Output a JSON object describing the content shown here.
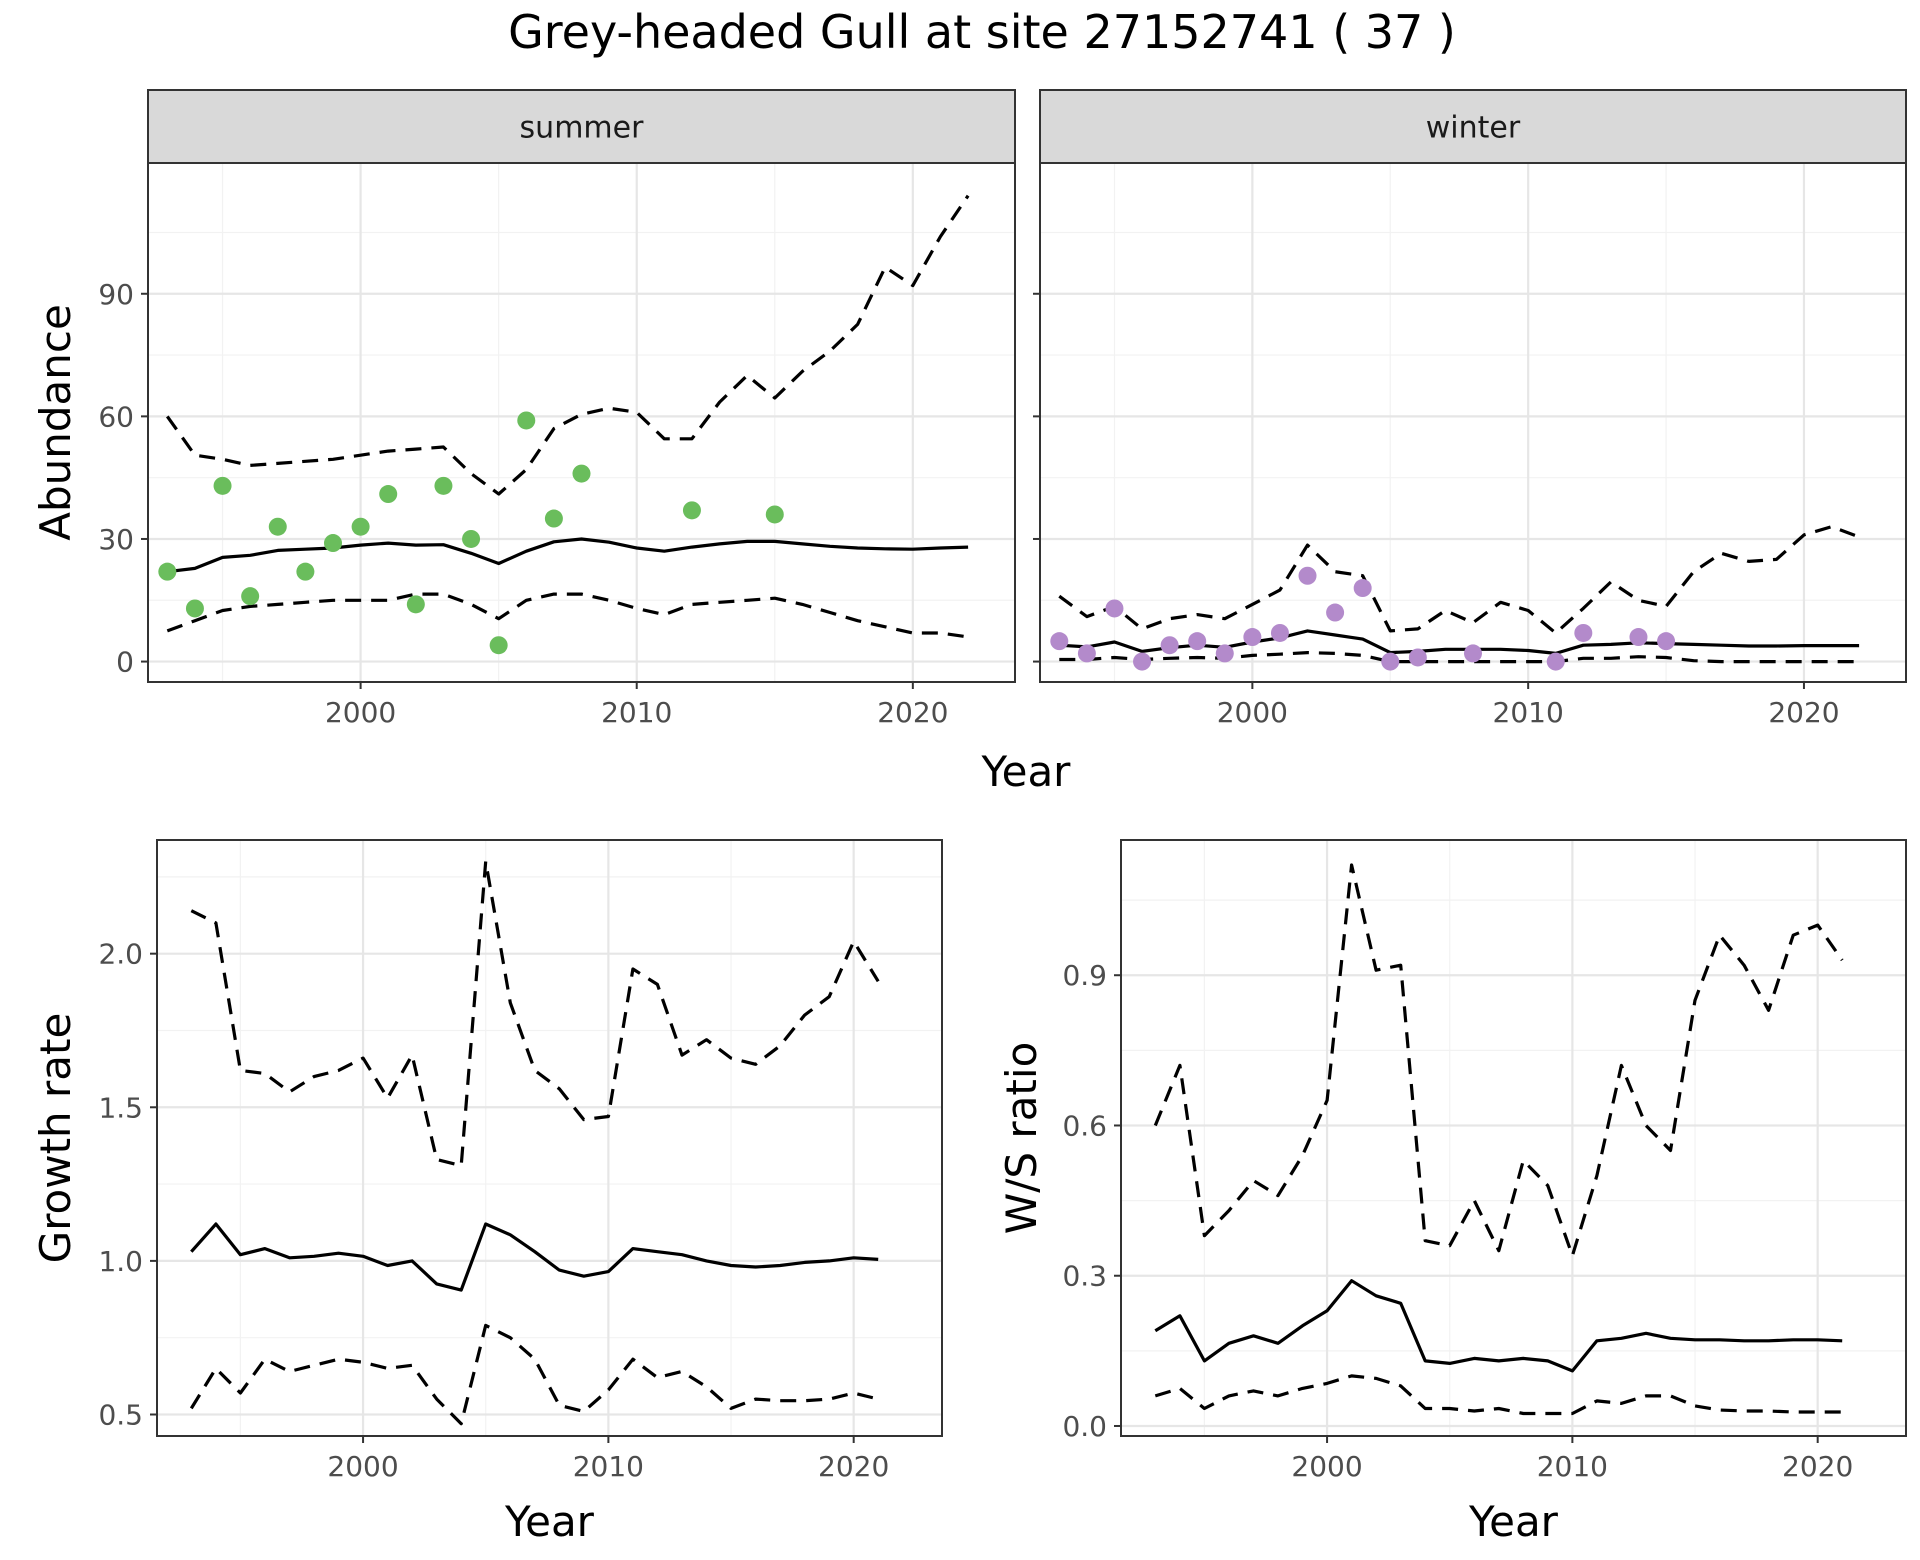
{
  "chart_data": {
    "type": "line",
    "title": "Grey-headed Gull at site 27152741 ( 37 )",
    "panels": [
      {
        "id": "summer",
        "strip": "summer",
        "xlabel": "",
        "ylabel": "Abundance",
        "xlim": [
          1992.3,
          2023.7
        ],
        "ylim": [
          -5,
          122
        ],
        "xticks": [
          2000,
          2010,
          2020
        ],
        "xtick_labels": [
          "2000",
          "2010",
          "2020"
        ],
        "yticks": [
          0,
          30,
          60,
          90
        ],
        "ytick_labels": [
          "0",
          "30",
          "60",
          "90"
        ],
        "show_y_labels": true,
        "point_color": "#6abd5c",
        "points": {
          "x": [
            1993,
            1994,
            1995,
            1996,
            1997,
            1998,
            1999,
            2000,
            2001,
            2002,
            2003,
            2004,
            2005,
            2006,
            2007,
            2008,
            2012,
            2015
          ],
          "y": [
            22,
            13,
            43,
            16,
            33,
            22,
            29,
            33,
            41,
            14,
            43,
            30,
            4,
            59,
            35,
            46,
            37,
            36
          ]
        },
        "mean": {
          "x": [
            1993,
            1994,
            1995,
            1996,
            1997,
            1998,
            1999,
            2000,
            2001,
            2002,
            2003,
            2004,
            2005,
            2006,
            2007,
            2008,
            2009,
            2010,
            2011,
            2012,
            2013,
            2014,
            2015,
            2016,
            2017,
            2018,
            2019,
            2020,
            2021,
            2022
          ],
          "y": [
            22,
            22.8,
            25.5,
            26,
            27.2,
            27.5,
            27.8,
            28.5,
            29,
            28.5,
            28.6,
            26.5,
            24,
            27,
            29.3,
            30,
            29.2,
            27.8,
            27,
            28,
            28.8,
            29.4,
            29.4,
            28.8,
            28.2,
            27.8,
            27.6,
            27.5,
            27.8,
            28
          ]
        },
        "upper": {
          "x": [
            1993,
            1994,
            1995,
            1996,
            1997,
            1998,
            1999,
            2000,
            2001,
            2002,
            2003,
            2004,
            2005,
            2006,
            2007,
            2008,
            2009,
            2010,
            2011,
            2012,
            2013,
            2014,
            2015,
            2016,
            2017,
            2018,
            2019,
            2020,
            2021,
            2022
          ],
          "y": [
            60,
            50.5,
            49.5,
            48,
            48.5,
            49,
            49.5,
            50.5,
            51.5,
            52,
            52.5,
            46,
            41,
            47,
            57,
            60.5,
            62,
            61,
            54.5,
            54.5,
            63.5,
            70,
            64.5,
            71,
            76,
            82.5,
            96.5,
            92,
            104,
            114
          ]
        },
        "lower": {
          "x": [
            1993,
            1994,
            1995,
            1996,
            1997,
            1998,
            1999,
            2000,
            2001,
            2002,
            2003,
            2004,
            2005,
            2006,
            2007,
            2008,
            2009,
            2010,
            2011,
            2012,
            2013,
            2014,
            2015,
            2016,
            2017,
            2018,
            2019,
            2020,
            2021,
            2022
          ],
          "y": [
            7.5,
            10,
            12.5,
            13.5,
            14,
            14.5,
            15,
            15,
            15,
            16.5,
            16.5,
            14,
            10.5,
            15,
            16.5,
            16.5,
            15,
            13,
            11.5,
            14,
            14.5,
            15,
            15.5,
            14,
            12,
            10,
            8.5,
            7,
            7,
            6
          ]
        }
      },
      {
        "id": "winter",
        "strip": "winter",
        "xlabel": "",
        "ylabel": "",
        "xlim": [
          1992.3,
          2023.7
        ],
        "ylim": [
          -5,
          122
        ],
        "xticks": [
          2000,
          2010,
          2020
        ],
        "xtick_labels": [
          "2000",
          "2010",
          "2020"
        ],
        "yticks": [
          0,
          30,
          60,
          90
        ],
        "ytick_labels": [],
        "show_y_labels": false,
        "point_color": "#b38acb",
        "points": {
          "x": [
            1993,
            1994,
            1995,
            1996,
            1997,
            1998,
            1999,
            2000,
            2001,
            2002,
            2003,
            2004,
            2005,
            2006,
            2008,
            2011,
            2012,
            2014,
            2015
          ],
          "y": [
            5,
            2,
            13,
            0,
            4,
            5,
            2,
            6,
            7,
            21,
            12,
            18,
            0,
            1,
            2,
            0,
            7,
            6,
            5
          ]
        },
        "mean": {
          "x": [
            1993,
            1994,
            1995,
            1996,
            1997,
            1998,
            1999,
            2000,
            2001,
            2002,
            2003,
            2004,
            2005,
            2006,
            2007,
            2008,
            2009,
            2010,
            2011,
            2012,
            2013,
            2014,
            2015,
            2016,
            2017,
            2018,
            2019,
            2020,
            2021,
            2022
          ],
          "y": [
            4,
            3.6,
            4.8,
            2.5,
            3.4,
            4,
            3.5,
            4.8,
            5.8,
            7.5,
            6.5,
            5.5,
            2.2,
            2.5,
            3,
            3,
            3,
            2.7,
            2,
            4,
            4.2,
            4.6,
            4.4,
            4.2,
            4,
            3.8,
            3.8,
            3.9,
            3.9,
            3.9
          ]
        },
        "upper": {
          "x": [
            1993,
            1994,
            1995,
            1996,
            1997,
            1998,
            1999,
            2000,
            2001,
            2002,
            2003,
            2004,
            2005,
            2006,
            2007,
            2008,
            2009,
            2010,
            2011,
            2012,
            2013,
            2014,
            2015,
            2016,
            2017,
            2018,
            2019,
            2020,
            2021,
            2022
          ],
          "y": [
            16,
            11,
            13.5,
            8,
            10.5,
            11.5,
            10.5,
            14,
            17.5,
            28.5,
            22,
            21,
            7.5,
            8,
            12.5,
            9.5,
            14.5,
            12.5,
            7,
            13,
            19.5,
            15,
            13.5,
            22,
            26.5,
            24.5,
            25,
            31,
            33,
            30.5
          ]
        },
        "lower": {
          "x": [
            1993,
            1994,
            1995,
            1996,
            1997,
            1998,
            1999,
            2000,
            2001,
            2002,
            2003,
            2004,
            2005,
            2006,
            2007,
            2008,
            2009,
            2010,
            2011,
            2012,
            2013,
            2014,
            2015,
            2016,
            2017,
            2018,
            2019,
            2020,
            2021,
            2022
          ],
          "y": [
            0.5,
            0.5,
            1,
            0.5,
            0.8,
            1,
            0.8,
            1.5,
            1.8,
            2.2,
            2,
            1.5,
            0,
            0,
            0,
            0,
            0,
            0,
            0,
            0.8,
            0.8,
            1.2,
            1,
            0.2,
            0,
            0,
            0,
            0,
            0,
            0
          ]
        }
      },
      {
        "id": "growth",
        "strip": "",
        "xlabel": "Year",
        "ylabel": "Growth rate",
        "xlim": [
          1991.6,
          2023.6
        ],
        "ylim": [
          0.43,
          2.37
        ],
        "xticks": [
          2000,
          2010,
          2020
        ],
        "xtick_labels": [
          "2000",
          "2010",
          "2020"
        ],
        "yticks": [
          0.5,
          1.0,
          1.5,
          2.0
        ],
        "ytick_labels": [
          "0.5",
          "1.0",
          "1.5",
          "2.0"
        ],
        "show_y_labels": true,
        "mean": {
          "x": [
            1993,
            1994,
            1995,
            1996,
            1997,
            1998,
            1999,
            2000,
            2001,
            2002,
            2003,
            2004,
            2005,
            2006,
            2007,
            2008,
            2009,
            2010,
            2011,
            2012,
            2013,
            2014,
            2015,
            2016,
            2017,
            2018,
            2019,
            2020,
            2021
          ],
          "y": [
            1.03,
            1.12,
            1.02,
            1.04,
            1.01,
            1.015,
            1.025,
            1.015,
            0.985,
            1.0,
            0.925,
            0.905,
            1.12,
            1.085,
            1.03,
            0.97,
            0.95,
            0.965,
            1.04,
            1.03,
            1.02,
            1.0,
            0.985,
            0.98,
            0.985,
            0.995,
            1.0,
            1.01,
            1.005
          ]
        },
        "upper": {
          "x": [
            1993,
            1994,
            1995,
            1996,
            1997,
            1998,
            1999,
            2000,
            2001,
            2002,
            2003,
            2004,
            2005,
            2006,
            2007,
            2008,
            2009,
            2010,
            2011,
            2012,
            2013,
            2014,
            2015,
            2016,
            2017,
            2018,
            2019,
            2020,
            2021
          ],
          "y": [
            2.14,
            2.1,
            1.62,
            1.61,
            1.55,
            1.6,
            1.62,
            1.66,
            1.53,
            1.67,
            1.33,
            1.31,
            2.3,
            1.84,
            1.62,
            1.56,
            1.46,
            1.47,
            1.95,
            1.9,
            1.67,
            1.72,
            1.66,
            1.64,
            1.7,
            1.8,
            1.86,
            2.04,
            1.91
          ]
        },
        "lower": {
          "x": [
            1993,
            1994,
            1995,
            1996,
            1997,
            1998,
            1999,
            2000,
            2001,
            2002,
            2003,
            2004,
            2005,
            2006,
            2007,
            2008,
            2009,
            2010,
            2011,
            2012,
            2013,
            2014,
            2015,
            2016,
            2017,
            2018,
            2019,
            2020,
            2021
          ],
          "y": [
            0.52,
            0.65,
            0.57,
            0.68,
            0.64,
            0.66,
            0.68,
            0.67,
            0.65,
            0.66,
            0.55,
            0.47,
            0.79,
            0.75,
            0.68,
            0.53,
            0.51,
            0.58,
            0.68,
            0.62,
            0.64,
            0.59,
            0.52,
            0.55,
            0.545,
            0.545,
            0.55,
            0.57,
            0.55
          ]
        }
      },
      {
        "id": "ws",
        "strip": "",
        "xlabel": "Year",
        "ylabel": "W/S ratio",
        "xlim": [
          1991.6,
          2023.6
        ],
        "ylim": [
          -0.02,
          1.17
        ],
        "xticks": [
          2000,
          2010,
          2020
        ],
        "xtick_labels": [
          "2000",
          "2010",
          "2020"
        ],
        "yticks": [
          0.0,
          0.3,
          0.6,
          0.9
        ],
        "ytick_labels": [
          "0.0",
          "0.3",
          "0.6",
          "0.9"
        ],
        "show_y_labels": true,
        "mean": {
          "x": [
            1993,
            1994,
            1995,
            1996,
            1997,
            1998,
            1999,
            2000,
            2001,
            2002,
            2003,
            2004,
            2005,
            2006,
            2007,
            2008,
            2009,
            2010,
            2011,
            2012,
            2013,
            2014,
            2015,
            2016,
            2017,
            2018,
            2019,
            2020,
            2021
          ],
          "y": [
            0.19,
            0.22,
            0.13,
            0.165,
            0.18,
            0.165,
            0.2,
            0.23,
            0.29,
            0.26,
            0.245,
            0.13,
            0.125,
            0.135,
            0.13,
            0.135,
            0.13,
            0.11,
            0.17,
            0.175,
            0.185,
            0.175,
            0.172,
            0.172,
            0.17,
            0.17,
            0.172,
            0.172,
            0.17
          ]
        },
        "upper": {
          "x": [
            1993,
            1994,
            1995,
            1996,
            1997,
            1998,
            1999,
            2000,
            2001,
            2002,
            2003,
            2004,
            2005,
            2006,
            2007,
            2008,
            2009,
            2010,
            2011,
            2012,
            2013,
            2014,
            2015,
            2016,
            2017,
            2018,
            2019,
            2020,
            2021
          ],
          "y": [
            0.6,
            0.72,
            0.38,
            0.43,
            0.49,
            0.46,
            0.54,
            0.65,
            1.12,
            0.91,
            0.92,
            0.37,
            0.36,
            0.45,
            0.35,
            0.53,
            0.48,
            0.34,
            0.5,
            0.72,
            0.6,
            0.55,
            0.85,
            0.98,
            0.92,
            0.83,
            0.98,
            1.0,
            0.93
          ]
        },
        "lower": {
          "x": [
            1993,
            1994,
            1995,
            1996,
            1997,
            1998,
            1999,
            2000,
            2001,
            2002,
            2003,
            2004,
            2005,
            2006,
            2007,
            2008,
            2009,
            2010,
            2011,
            2012,
            2013,
            2014,
            2015,
            2016,
            2017,
            2018,
            2019,
            2020,
            2021
          ],
          "y": [
            0.06,
            0.075,
            0.035,
            0.06,
            0.07,
            0.06,
            0.075,
            0.085,
            0.1,
            0.095,
            0.08,
            0.035,
            0.035,
            0.03,
            0.035,
            0.025,
            0.025,
            0.025,
            0.05,
            0.045,
            0.06,
            0.06,
            0.04,
            0.032,
            0.03,
            0.03,
            0.028,
            0.028,
            0.028
          ]
        }
      }
    ],
    "shared_xlabel_top": "Year",
    "grid": true,
    "legend": "none"
  }
}
